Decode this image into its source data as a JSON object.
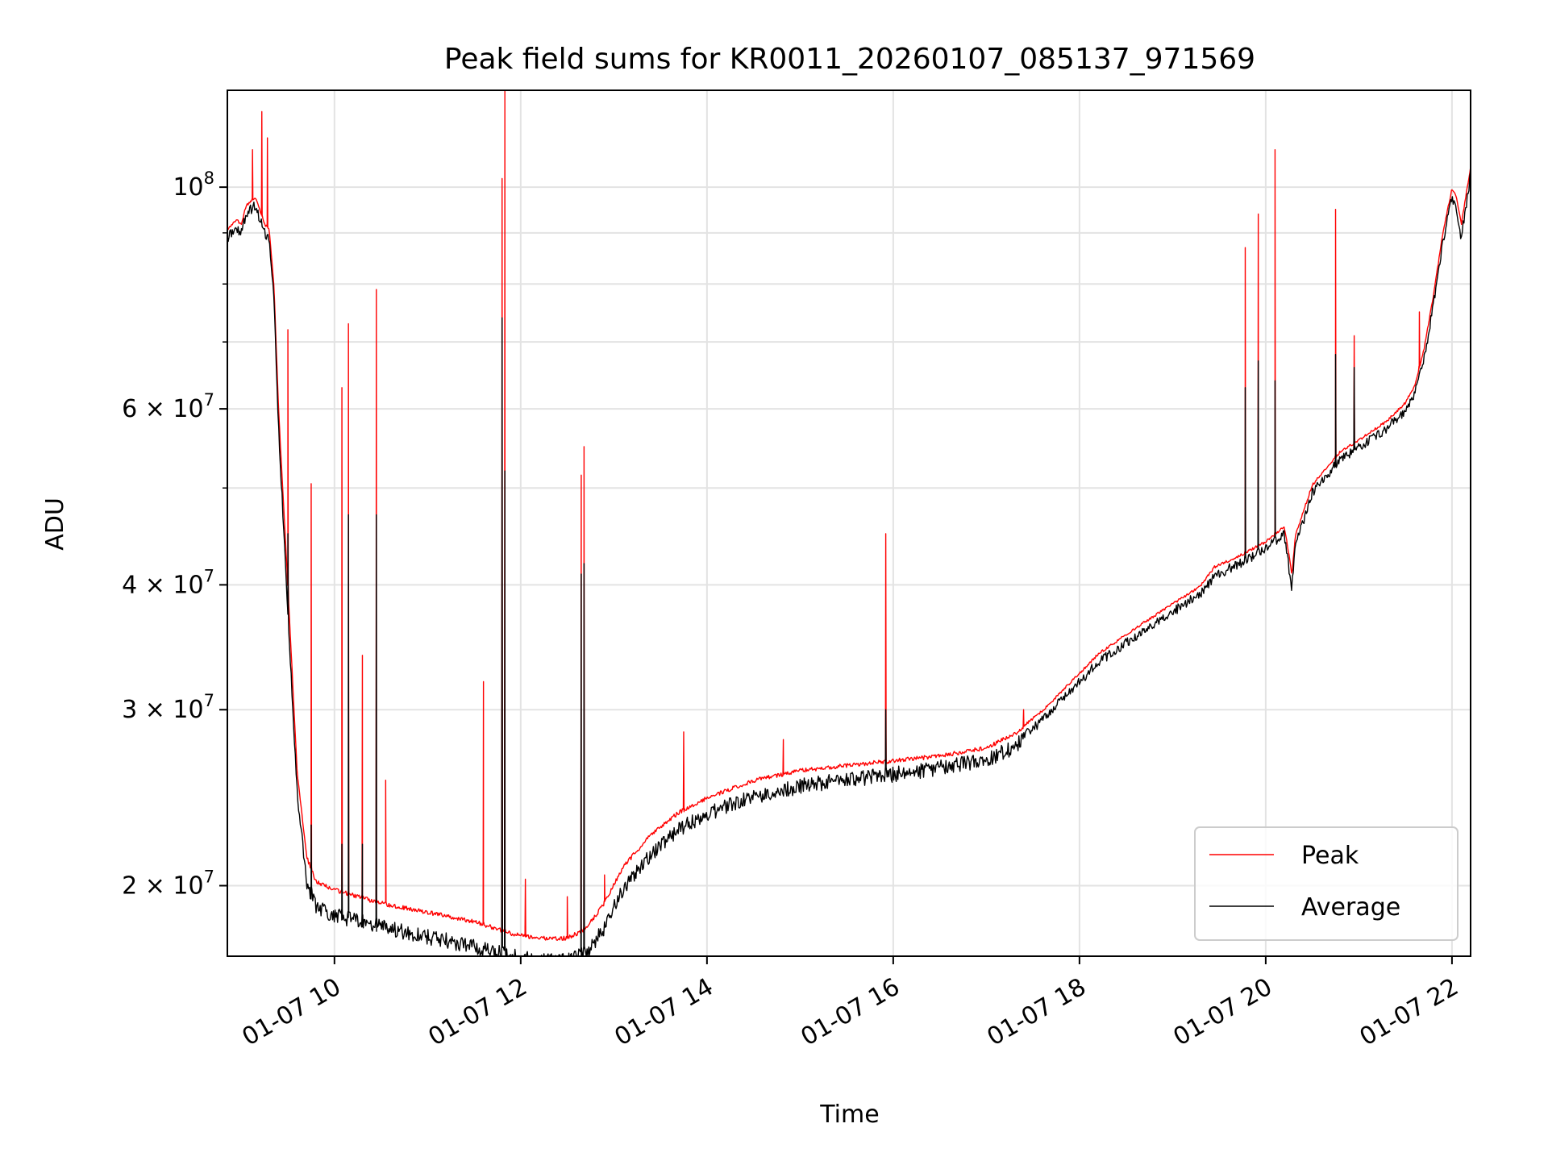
{
  "chart_data": {
    "type": "line",
    "title": "Peak field sums for KR0011_20260107_085137_971569",
    "xlabel": "Time",
    "ylabel": "ADU",
    "yscale": "log",
    "xlim": [
      8.85,
      22.2
    ],
    "ylim": [
      17000000,
      125000000
    ],
    "grid": true,
    "legend_position": "lower right",
    "x_ticks": [
      {
        "value": 10,
        "label": "01-07 10"
      },
      {
        "value": 12,
        "label": "01-07 12"
      },
      {
        "value": 14,
        "label": "01-07 14"
      },
      {
        "value": 16,
        "label": "01-07 16"
      },
      {
        "value": 18,
        "label": "01-07 18"
      },
      {
        "value": 20,
        "label": "01-07 20"
      },
      {
        "value": 22,
        "label": "01-07 22"
      }
    ],
    "y_ticks": [
      {
        "value": 20000000,
        "base": "2 × 10",
        "exp": "7"
      },
      {
        "value": 30000000,
        "base": "3 × 10",
        "exp": "7"
      },
      {
        "value": 40000000,
        "base": "4 × 10",
        "exp": "7"
      },
      {
        "value": 60000000,
        "base": "6 × 10",
        "exp": "7"
      },
      {
        "value": 100000000,
        "base": "10",
        "exp": "8"
      }
    ],
    "y_minor_ticks": [
      50000000,
      70000000,
      80000000,
      90000000
    ],
    "series": [
      {
        "name": "Peak",
        "color": "#ff0000",
        "baseline": [
          [
            8.85,
            91000000
          ],
          [
            8.95,
            93000000
          ],
          [
            9.0,
            92000000
          ],
          [
            9.05,
            96000000
          ],
          [
            9.15,
            98000000
          ],
          [
            9.25,
            92000000
          ],
          [
            9.3,
            91000000
          ],
          [
            9.35,
            80000000
          ],
          [
            9.4,
            60000000
          ],
          [
            9.5,
            40000000
          ],
          [
            9.6,
            26000000
          ],
          [
            9.7,
            21500000
          ],
          [
            9.8,
            20300000
          ],
          [
            10.0,
            19900000
          ],
          [
            10.5,
            19300000
          ],
          [
            11.0,
            18900000
          ],
          [
            11.5,
            18500000
          ],
          [
            11.9,
            18000000
          ],
          [
            12.2,
            17800000
          ],
          [
            12.5,
            17800000
          ],
          [
            12.7,
            18200000
          ],
          [
            12.9,
            19300000
          ],
          [
            13.1,
            21000000
          ],
          [
            13.4,
            22600000
          ],
          [
            13.7,
            23800000
          ],
          [
            14.0,
            24600000
          ],
          [
            14.5,
            25600000
          ],
          [
            15.0,
            26200000
          ],
          [
            15.5,
            26500000
          ],
          [
            16.0,
            26800000
          ],
          [
            16.5,
            27100000
          ],
          [
            17.0,
            27600000
          ],
          [
            17.3,
            28500000
          ],
          [
            17.6,
            30000000
          ],
          [
            17.9,
            32000000
          ],
          [
            18.2,
            34200000
          ],
          [
            18.6,
            36300000
          ],
          [
            19.0,
            38400000
          ],
          [
            19.3,
            40000000
          ],
          [
            19.45,
            41800000
          ],
          [
            19.7,
            42800000
          ],
          [
            20.0,
            44300000
          ],
          [
            20.15,
            45500000
          ],
          [
            20.2,
            45800000
          ],
          [
            20.25,
            43000000
          ],
          [
            20.28,
            41000000
          ],
          [
            20.32,
            45000000
          ],
          [
            20.5,
            50500000
          ],
          [
            20.8,
            54500000
          ],
          [
            21.0,
            56000000
          ],
          [
            21.3,
            58500000
          ],
          [
            21.5,
            61000000
          ],
          [
            21.6,
            63500000
          ],
          [
            21.7,
            69000000
          ],
          [
            21.8,
            78000000
          ],
          [
            21.9,
            90000000
          ],
          [
            22.0,
            100000000
          ],
          [
            22.05,
            98000000
          ],
          [
            22.1,
            92000000
          ],
          [
            22.2,
            105000000
          ]
        ],
        "spikes": [
          [
            9.12,
            109000000
          ],
          [
            9.22,
            119000000
          ],
          [
            9.28,
            112000000
          ],
          [
            9.5,
            72000000
          ],
          [
            9.75,
            50500000
          ],
          [
            10.08,
            63000000
          ],
          [
            10.15,
            73000000
          ],
          [
            10.3,
            34000000
          ],
          [
            10.45,
            79000000
          ],
          [
            10.55,
            25500000
          ],
          [
            11.6,
            32000000
          ],
          [
            11.8,
            102000000
          ],
          [
            11.83,
            125000000
          ],
          [
            12.05,
            20300000
          ],
          [
            12.5,
            19500000
          ],
          [
            12.65,
            51500000
          ],
          [
            12.68,
            55000000
          ],
          [
            12.9,
            20500000
          ],
          [
            13.75,
            28500000
          ],
          [
            14.82,
            28000000
          ],
          [
            15.92,
            45000000
          ],
          [
            17.4,
            30000000
          ],
          [
            19.78,
            87000000
          ],
          [
            19.92,
            94000000
          ],
          [
            20.1,
            109000000
          ],
          [
            20.75,
            95000000
          ],
          [
            20.95,
            71000000
          ],
          [
            21.65,
            75000000
          ]
        ]
      },
      {
        "name": "Average",
        "color": "#000000",
        "baseline": [
          [
            8.85,
            90000000
          ],
          [
            8.95,
            92000000
          ],
          [
            9.0,
            91000000
          ],
          [
            9.05,
            95000000
          ],
          [
            9.15,
            97000000
          ],
          [
            9.25,
            91000000
          ],
          [
            9.3,
            90000000
          ],
          [
            9.35,
            78000000
          ],
          [
            9.4,
            58000000
          ],
          [
            9.5,
            38000000
          ],
          [
            9.6,
            25000000
          ],
          [
            9.7,
            20500000
          ],
          [
            9.8,
            19400000
          ],
          [
            10.0,
            19000000
          ],
          [
            10.5,
            18500000
          ],
          [
            11.0,
            18100000
          ],
          [
            11.5,
            17700000
          ],
          [
            11.9,
            17300000
          ],
          [
            12.2,
            17100000
          ],
          [
            12.5,
            17100000
          ],
          [
            12.7,
            17400000
          ],
          [
            12.9,
            18500000
          ],
          [
            13.1,
            20200000
          ],
          [
            13.4,
            21900000
          ],
          [
            13.7,
            23200000
          ],
          [
            14.0,
            24000000
          ],
          [
            14.5,
            25000000
          ],
          [
            15.0,
            25600000
          ],
          [
            15.5,
            26000000
          ],
          [
            16.0,
            26300000
          ],
          [
            16.5,
            26700000
          ],
          [
            17.0,
            27200000
          ],
          [
            17.3,
            28000000
          ],
          [
            17.6,
            29600000
          ],
          [
            17.9,
            31600000
          ],
          [
            18.2,
            33800000
          ],
          [
            18.6,
            35900000
          ],
          [
            19.0,
            38000000
          ],
          [
            19.3,
            39600000
          ],
          [
            19.45,
            41300000
          ],
          [
            19.7,
            42400000
          ],
          [
            20.0,
            43900000
          ],
          [
            20.15,
            45100000
          ],
          [
            20.2,
            45400000
          ],
          [
            20.25,
            42000000
          ],
          [
            20.28,
            40200000
          ],
          [
            20.32,
            44300000
          ],
          [
            20.5,
            50000000
          ],
          [
            20.8,
            54000000
          ],
          [
            21.0,
            55500000
          ],
          [
            21.3,
            58000000
          ],
          [
            21.5,
            60500000
          ],
          [
            21.6,
            63000000
          ],
          [
            21.7,
            68000000
          ],
          [
            21.8,
            77000000
          ],
          [
            21.9,
            89000000
          ],
          [
            22.0,
            99000000
          ],
          [
            22.05,
            96000000
          ],
          [
            22.1,
            90000000
          ],
          [
            22.2,
            104000000
          ]
        ],
        "spikes": [
          [
            9.5,
            45000000
          ],
          [
            9.75,
            23000000
          ],
          [
            10.08,
            22000000
          ],
          [
            10.15,
            47000000
          ],
          [
            10.3,
            22000000
          ],
          [
            10.45,
            47000000
          ],
          [
            11.8,
            74000000
          ],
          [
            11.83,
            52000000
          ],
          [
            12.65,
            41000000
          ],
          [
            12.68,
            42000000
          ],
          [
            15.92,
            30000000
          ],
          [
            19.78,
            63000000
          ],
          [
            19.92,
            67000000
          ],
          [
            20.1,
            64000000
          ],
          [
            20.75,
            68000000
          ],
          [
            20.95,
            66000000
          ]
        ]
      }
    ]
  }
}
